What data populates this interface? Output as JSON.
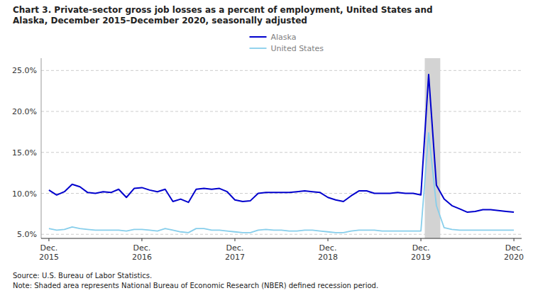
{
  "chart_data": {
    "type": "line",
    "title": "Chart 3. Private-sector gross job losses as a percent of employment, United States and\nAlaska, December 2015–December 2020, seasonally adjusted",
    "annotations": [
      "Source: U.S. Bureau of Labor Statistics.",
      "Note: Shaded area represents National Bureau of Economic Research (NBER) defined recession period."
    ],
    "categories": [
      "Dec.\n2015",
      null,
      null,
      null,
      null,
      null,
      null,
      null,
      null,
      null,
      null,
      null,
      "Dec.\n2016",
      null,
      null,
      null,
      null,
      null,
      null,
      null,
      null,
      null,
      null,
      null,
      "Dec.\n2017",
      null,
      null,
      null,
      null,
      null,
      null,
      null,
      null,
      null,
      null,
      null,
      "Dec.\n2018",
      null,
      null,
      null,
      null,
      null,
      null,
      null,
      null,
      null,
      null,
      null,
      "Dec.\n2019",
      null,
      null,
      null,
      null,
      null,
      null,
      null,
      null,
      null,
      null,
      null,
      "Dec.\n2020"
    ],
    "series": [
      {
        "name": "Alaska",
        "color": "#0000CD",
        "values": [
          10.4,
          9.8,
          10.2,
          11.1,
          10.8,
          10.1,
          10.0,
          10.2,
          10.1,
          10.5,
          9.5,
          10.6,
          10.7,
          10.4,
          10.2,
          10.5,
          9.0,
          9.3,
          8.9,
          10.5,
          10.6,
          10.5,
          10.6,
          10.2,
          9.2,
          9.0,
          9.1,
          10.0,
          10.1,
          10.1,
          10.1,
          10.1,
          10.2,
          10.3,
          10.2,
          10.1,
          9.5,
          9.2,
          9.0,
          9.7,
          10.3,
          10.3,
          10.0,
          10.0,
          10.0,
          10.1,
          10.0,
          10.0,
          9.8,
          24.5,
          11.0,
          9.3,
          8.5,
          8.1,
          7.7,
          7.8,
          8.0,
          8.0,
          7.9,
          7.8,
          7.7
        ]
      },
      {
        "name": "United States",
        "color": "#87CEEB",
        "values": [
          5.7,
          5.5,
          5.6,
          5.9,
          5.7,
          5.6,
          5.5,
          5.5,
          5.5,
          5.5,
          5.4,
          5.6,
          5.6,
          5.5,
          5.4,
          5.7,
          5.5,
          5.3,
          5.2,
          5.7,
          5.7,
          5.5,
          5.5,
          5.4,
          5.3,
          5.2,
          5.2,
          5.5,
          5.6,
          5.5,
          5.5,
          5.4,
          5.4,
          5.5,
          5.5,
          5.4,
          5.3,
          5.2,
          5.2,
          5.4,
          5.5,
          5.5,
          5.5,
          5.4,
          5.4,
          5.4,
          5.4,
          5.4,
          5.4,
          17.4,
          8.5,
          5.8,
          5.6,
          5.5,
          5.5,
          5.5,
          5.5,
          5.5,
          5.5,
          5.5,
          5.5
        ]
      }
    ],
    "shaded_span": {
      "start": 48.5,
      "end": 50.5,
      "color": "#D3D3D3"
    },
    "ylim": [
      4.5,
      26.5
    ],
    "yticks": [
      {
        "value": 5.0,
        "label": "5.0%"
      },
      {
        "value": 10.0,
        "label": "10.0%"
      },
      {
        "value": 15.0,
        "label": "15.0%"
      },
      {
        "value": 20.0,
        "label": "20.0%"
      },
      {
        "value": 25.0,
        "label": "25.0%"
      }
    ],
    "grid": true,
    "legend": "top",
    "legend_text_color": "#808080"
  }
}
